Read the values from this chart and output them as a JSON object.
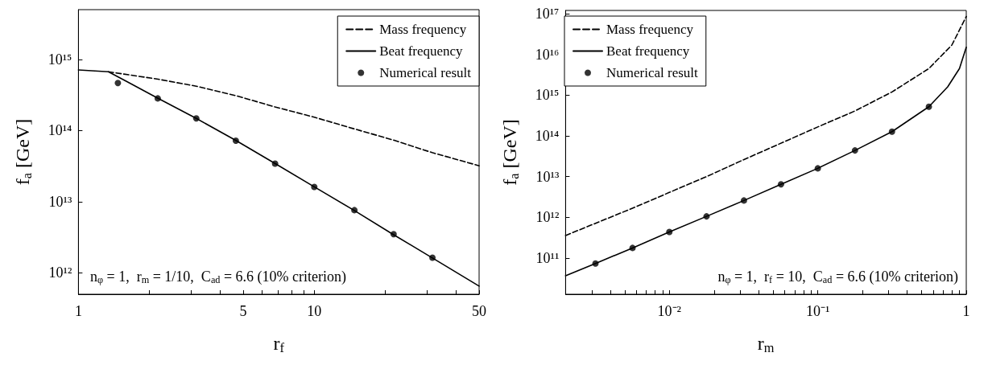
{
  "chart_data": [
    {
      "type": "line",
      "xlabel": "r$_{f}$",
      "ylabel": "f$_{a}$ [GeV]",
      "log": "xy",
      "legend": "top right",
      "grid": false,
      "xlim": [
        1,
        50
      ],
      "ylim": [
        500000000000.0,
        5000000000000000.0
      ],
      "xticks": [
        1,
        {
          "value": 2,
          "label": null
        },
        {
          "value": 3,
          "label": null
        },
        {
          "value": 4,
          "label": null
        },
        5,
        {
          "value": 6,
          "label": null
        },
        {
          "value": 7,
          "label": null
        },
        {
          "value": 8,
          "label": null
        },
        {
          "value": 9,
          "label": null
        },
        10,
        {
          "value": 20,
          "label": null
        },
        {
          "value": 30,
          "label": null
        },
        {
          "value": 40,
          "label": null
        },
        50
      ],
      "yticks": [
        {
          "value": 1000000000000.0,
          "label": "10¹²"
        },
        {
          "value": 10000000000000.0,
          "label": "10¹³"
        },
        {
          "value": 100000000000000.0,
          "label": "10¹⁴"
        },
        {
          "value": 1000000000000000.0,
          "label": "10¹⁵"
        }
      ],
      "annotations": [
        "n$_{φ}$ = 1,  r$_{m}$ = 1/10,  C$_{ad}$ = 6.6 (10% criterion)"
      ],
      "series": [
        {
          "name": "Mass frequency",
          "line_style": "dashed",
          "marker": "none",
          "color": "#000000",
          "x": [
            1.34,
            2.15,
            3.16,
            4.64,
            6.81,
            10,
            14.7,
            21.5,
            31.6,
            50
          ],
          "values": [
            670000000000000.0,
            530000000000000.0,
            420000000000000.0,
            310000000000000.0,
            215000000000000.0,
            154000000000000.0,
            106000000000000.0,
            74000000000000.0,
            49000000000000.0,
            32000000000000.0
          ]
        },
        {
          "name": "Beat frequency",
          "line_style": "solid",
          "marker": "none",
          "color": "#000000",
          "x": [
            1,
            1.34,
            1.6,
            2.15,
            3.16,
            4.64,
            6.81,
            10,
            14.7,
            21.5,
            31.6,
            50
          ],
          "values": [
            710000000000000.0,
            670000000000000.0,
            490000000000000.0,
            290000000000000.0,
            148000000000000.0,
            73000000000000.0,
            34500000000000.0,
            16200000000000.0,
            7600000000000.0,
            3500000000000.0,
            1630000000000.0,
            650000000000.0
          ]
        },
        {
          "name": "Numerical result",
          "type": "scatter",
          "marker": "circle",
          "color": "#000000",
          "x": [
            1.47,
            2.17,
            3.16,
            4.65,
            6.82,
            10,
            14.8,
            21.7,
            31.7
          ],
          "values": [
            466000000000000.0,
            283000000000000.0,
            148000000000000.0,
            72000000000000.0,
            34300000000000.0,
            16100000000000.0,
            7600000000000.0,
            3500000000000.0,
            1630000000000.0
          ]
        }
      ]
    },
    {
      "type": "line",
      "xlabel": "r$_{m}$",
      "ylabel": "f$_{a}$ [GeV]",
      "log": "xy",
      "legend": "top left",
      "grid": false,
      "xlim": [
        0.002,
        1
      ],
      "ylim": [
        13000000000.0,
        1.2e+17
      ],
      "xticks": [
        {
          "value": 0.003,
          "label": null
        },
        {
          "value": 0.004,
          "label": null
        },
        {
          "value": 0.005,
          "label": null
        },
        {
          "value": 0.006,
          "label": null
        },
        {
          "value": 0.007,
          "label": null
        },
        {
          "value": 0.008,
          "label": null
        },
        {
          "value": 0.009,
          "label": null
        },
        {
          "value": 0.01,
          "label": "10⁻²"
        },
        {
          "value": 0.02,
          "label": null
        },
        {
          "value": 0.03,
          "label": null
        },
        {
          "value": 0.04,
          "label": null
        },
        {
          "value": 0.05,
          "label": null
        },
        {
          "value": 0.06,
          "label": null
        },
        {
          "value": 0.07,
          "label": null
        },
        {
          "value": 0.08,
          "label": null
        },
        {
          "value": 0.09,
          "label": null
        },
        {
          "value": 0.1,
          "label": "10⁻¹"
        },
        {
          "value": 0.2,
          "label": null
        },
        {
          "value": 0.3,
          "label": null
        },
        {
          "value": 0.4,
          "label": null
        },
        {
          "value": 0.5,
          "label": null
        },
        {
          "value": 0.6,
          "label": null
        },
        {
          "value": 0.7,
          "label": null
        },
        {
          "value": 0.8,
          "label": null
        },
        {
          "value": 0.9,
          "label": null
        },
        1
      ],
      "yticks": [
        {
          "value": 100000000000.0,
          "label": "10¹¹"
        },
        {
          "value": 1000000000000.0,
          "label": "10¹²"
        },
        {
          "value": 10000000000000.0,
          "label": "10¹³"
        },
        {
          "value": 100000000000000.0,
          "label": "10¹⁴"
        },
        {
          "value": 1000000000000000.0,
          "label": "10¹⁵"
        },
        {
          "value": 1e+16,
          "label": "10¹⁶"
        },
        {
          "value": 1e+17,
          "label": "10¹⁷"
        }
      ],
      "annotations": [
        "n$_{φ}$ = 1,  r$_{f}$ = 10,  C$_{ad}$ = 6.6 (10% criterion)"
      ],
      "series": [
        {
          "name": "Mass frequency",
          "line_style": "dashed",
          "marker": "none",
          "color": "#000000",
          "x": [
            0.002,
            0.0056,
            0.01,
            0.0178,
            0.0316,
            0.1,
            0.178,
            0.316,
            0.56,
            0.8,
            1
          ],
          "values": [
            360000000000.0,
            1660000000000.0,
            4100000000000.0,
            10000000000000.0,
            26000000000000.0,
            166000000000000.0,
            410000000000000.0,
            1200000000000000.0,
            4500000000000000.0,
            1.7e+16,
            8.5e+16
          ]
        },
        {
          "name": "Beat frequency",
          "line_style": "solid",
          "marker": "none",
          "color": "#000000",
          "x": [
            0.002,
            0.00318,
            0.00565,
            0.01,
            0.0178,
            0.0318,
            0.0565,
            0.1,
            0.178,
            0.316,
            0.56,
            0.75,
            0.9,
            1
          ],
          "values": [
            37000000000.0,
            74000000000.0,
            178000000000.0,
            440000000000.0,
            1060000000000.0,
            2600000000000.0,
            6500000000000.0,
            16000000000000.0,
            44000000000000.0,
            127000000000000.0,
            520000000000000.0,
            1600000000000000.0,
            4500000000000000.0,
            1.5e+16
          ]
        },
        {
          "name": "Numerical result",
          "type": "scatter",
          "marker": "circle",
          "color": "#000000",
          "x": [
            0.00318,
            0.00565,
            0.01,
            0.0178,
            0.0318,
            0.0565,
            0.1,
            0.178,
            0.316,
            0.56
          ],
          "values": [
            74000000000.0,
            178000000000.0,
            440000000000.0,
            1060000000000.0,
            2600000000000.0,
            6500000000000.0,
            16000000000000.0,
            44000000000000.0,
            127000000000000.0,
            520000000000000.0
          ]
        }
      ]
    }
  ]
}
